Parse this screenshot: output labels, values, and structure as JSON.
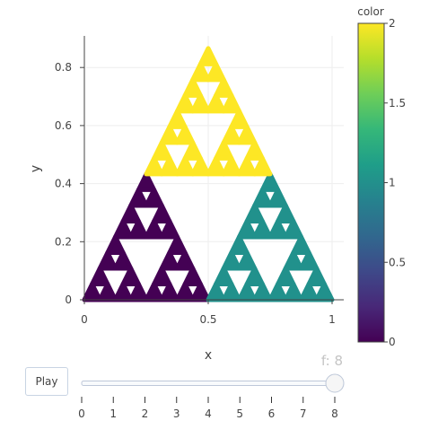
{
  "chart_data": {
    "type": "scatter",
    "description_series": "Sierpinski triangle points colored by sub-triangle index",
    "x": {
      "label": "x",
      "range": [
        0,
        1
      ],
      "ticks": [
        0,
        0.5,
        1
      ],
      "tick_labels": [
        "0",
        "0.5",
        "1"
      ]
    },
    "y": {
      "label": "y",
      "range": [
        0,
        0.866
      ],
      "ticks": [
        0,
        0.2,
        0.4,
        0.6,
        0.8
      ],
      "tick_labels": [
        "0",
        "0.2",
        "0.4",
        "0.6",
        "0.8"
      ]
    },
    "grid": true,
    "triangles": [
      {
        "vertices": [
          [
            0,
            0
          ],
          [
            0.5,
            0
          ],
          [
            0.25,
            0.433
          ]
        ],
        "color_value": 0
      },
      {
        "vertices": [
          [
            0.5,
            0
          ],
          [
            1,
            0
          ],
          [
            0.75,
            0.433
          ]
        ],
        "color_value": 1
      },
      {
        "vertices": [
          [
            0.25,
            0.433
          ],
          [
            0.75,
            0.433
          ],
          [
            0.5,
            0.866
          ]
        ],
        "color_value": 2
      }
    ],
    "colorbar": {
      "title": "color",
      "range": [
        0,
        2
      ],
      "ticks": [
        0,
        0.5,
        1,
        1.5,
        2
      ],
      "tick_labels": [
        "0",
        "0.5",
        "1",
        "1.5",
        "2"
      ],
      "colorscale": [
        "#440154",
        "#482878",
        "#3e4989",
        "#31688e",
        "#26828e",
        "#1f9e89",
        "#35b779",
        "#6ece58",
        "#b5de2b",
        "#fde725"
      ]
    }
  },
  "slider": {
    "current_label": "f: 8",
    "current_value": 8,
    "steps": [
      "0",
      "1",
      "2",
      "3",
      "4",
      "5",
      "6",
      "7",
      "8"
    ]
  },
  "controls": {
    "play_label": "Play"
  },
  "colors": {
    "c0": "#440154",
    "c1": "#21918c",
    "c2": "#fde725",
    "grid": "#eeeeee",
    "axis": "#444444"
  }
}
